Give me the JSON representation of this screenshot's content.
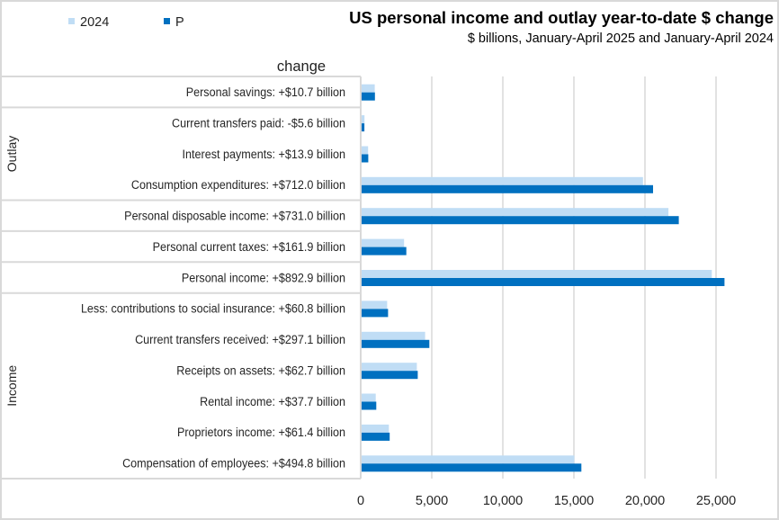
{
  "chart_data": {
    "type": "bar",
    "orientation": "horizontal",
    "title": "US personal income and outlay year-to-date $ change",
    "subtitle": "$ billions, January-April 2025 and January-April 2024",
    "column_header": "change",
    "xlabel": "",
    "ylabel": "",
    "xlim": [
      0,
      28000
    ],
    "xticks": [
      0,
      5000,
      10000,
      15000,
      20000,
      25000
    ],
    "xtick_labels": [
      "0",
      "5,000",
      "10,000",
      "15,000",
      "20,000",
      "25,000"
    ],
    "grid": true,
    "legend": "top-left",
    "categories": [
      "Personal savings:  +$10.7 billion",
      "Current transfers paid:  -$5.6 billion",
      "Interest payments:  +$13.9 billion",
      "Consumption expenditures:  +$712.0 billion",
      "Personal disposable income:  +$731.0 billion",
      "Personal current taxes:  +$161.9 billion",
      "Personal income:  +$892.9 billion",
      "Less: contributions to social insurance:  +$60.8 billion",
      "Current transfers received:  +$297.1 billion",
      "Receipts on assets:  +$62.7 billion",
      "Rental income:  +$37.7 billion",
      "Proprietors income:  +$61.4 billion",
      "Compensation of employees:  +$494.8 billion"
    ],
    "changes_billions": [
      10.7,
      -5.6,
      13.9,
      712.0,
      731.0,
      161.9,
      892.9,
      60.8,
      297.1,
      62.7,
      37.7,
      61.4,
      494.8
    ],
    "groups": [
      {
        "name": "",
        "start": 0,
        "end": 0
      },
      {
        "name": "Outlay",
        "start": 1,
        "end": 3
      },
      {
        "name": "",
        "start": 4,
        "end": 4
      },
      {
        "name": "",
        "start": 5,
        "end": 5
      },
      {
        "name": "",
        "start": 6,
        "end": 6
      },
      {
        "name": "Income",
        "start": 7,
        "end": 12
      }
    ],
    "series": [
      {
        "name": "2024",
        "color": "#C0DDF5",
        "values": [
          990,
          265,
          520,
          19860,
          21650,
          3050,
          24700,
          1860,
          4530,
          3950,
          1060,
          1980,
          15030
        ]
      },
      {
        "name": "P",
        "color": "#0070C0",
        "values": [
          1001,
          259,
          534,
          20572,
          22381,
          3212,
          25593,
          1921,
          4827,
          4013,
          1098,
          2041,
          15525
        ]
      }
    ]
  }
}
